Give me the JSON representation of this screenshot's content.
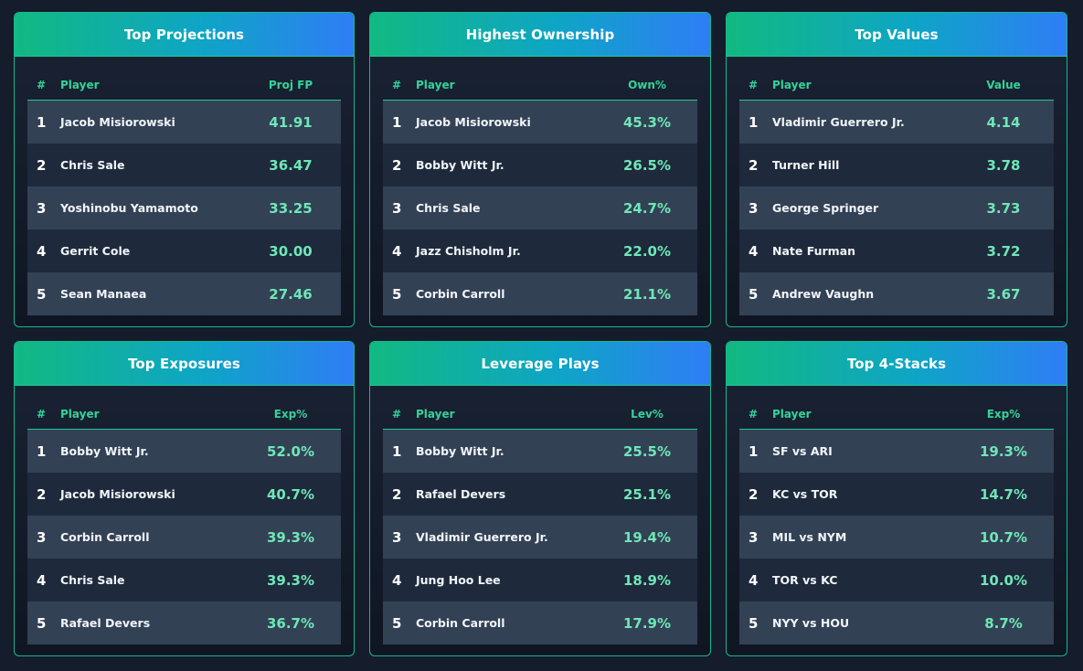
{
  "columns_rank": "#",
  "columns_player": "Player",
  "cards": [
    {
      "title": "Top Projections",
      "value_header": "Proj FP",
      "rows": [
        {
          "rank": "1",
          "player": "Jacob Misiorowski",
          "value": "41.91"
        },
        {
          "rank": "2",
          "player": "Chris Sale",
          "value": "36.47"
        },
        {
          "rank": "3",
          "player": "Yoshinobu Yamamoto",
          "value": "33.25"
        },
        {
          "rank": "4",
          "player": "Gerrit Cole",
          "value": "30.00"
        },
        {
          "rank": "5",
          "player": "Sean Manaea",
          "value": "27.46"
        }
      ]
    },
    {
      "title": "Highest Ownership",
      "value_header": "Own%",
      "rows": [
        {
          "rank": "1",
          "player": "Jacob Misiorowski",
          "value": "45.3%"
        },
        {
          "rank": "2",
          "player": "Bobby Witt Jr.",
          "value": "26.5%"
        },
        {
          "rank": "3",
          "player": "Chris Sale",
          "value": "24.7%"
        },
        {
          "rank": "4",
          "player": "Jazz Chisholm Jr.",
          "value": "22.0%"
        },
        {
          "rank": "5",
          "player": "Corbin Carroll",
          "value": "21.1%"
        }
      ]
    },
    {
      "title": "Top Values",
      "value_header": "Value",
      "rows": [
        {
          "rank": "1",
          "player": "Vladimir Guerrero Jr.",
          "value": "4.14"
        },
        {
          "rank": "2",
          "player": "Turner Hill",
          "value": "3.78"
        },
        {
          "rank": "3",
          "player": "George Springer",
          "value": "3.73"
        },
        {
          "rank": "4",
          "player": "Nate Furman",
          "value": "3.72"
        },
        {
          "rank": "5",
          "player": "Andrew Vaughn",
          "value": "3.67"
        }
      ]
    },
    {
      "title": "Top Exposures",
      "value_header": "Exp%",
      "rows": [
        {
          "rank": "1",
          "player": "Bobby Witt Jr.",
          "value": "52.0%"
        },
        {
          "rank": "2",
          "player": "Jacob Misiorowski",
          "value": "40.7%"
        },
        {
          "rank": "3",
          "player": "Corbin Carroll",
          "value": "39.3%"
        },
        {
          "rank": "4",
          "player": "Chris Sale",
          "value": "39.3%"
        },
        {
          "rank": "5",
          "player": "Rafael Devers",
          "value": "36.7%"
        }
      ]
    },
    {
      "title": "Leverage Plays",
      "value_header": "Lev%",
      "rows": [
        {
          "rank": "1",
          "player": "Bobby Witt Jr.",
          "value": "25.5%"
        },
        {
          "rank": "2",
          "player": "Rafael Devers",
          "value": "25.1%"
        },
        {
          "rank": "3",
          "player": "Vladimir Guerrero Jr.",
          "value": "19.4%"
        },
        {
          "rank": "4",
          "player": "Jung Hoo Lee",
          "value": "18.9%"
        },
        {
          "rank": "5",
          "player": "Corbin Carroll",
          "value": "17.9%"
        }
      ]
    },
    {
      "title": "Top 4-Stacks",
      "value_header": "Exp%",
      "rows": [
        {
          "rank": "1",
          "player": "SF vs ARI",
          "value": "19.3%"
        },
        {
          "rank": "2",
          "player": "KC vs TOR",
          "value": "14.7%"
        },
        {
          "rank": "3",
          "player": "MIL vs NYM",
          "value": "10.7%"
        },
        {
          "rank": "4",
          "player": "TOR vs KC",
          "value": "10.0%"
        },
        {
          "rank": "5",
          "player": "NYY vs HOU",
          "value": "8.7%"
        }
      ]
    }
  ]
}
